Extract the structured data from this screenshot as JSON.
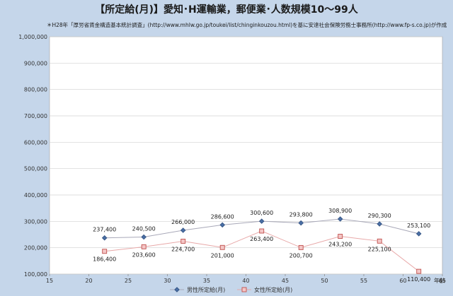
{
  "title": "【所定給(月)】愛知･H運輸業，郵便業･人数規模10～99人",
  "subtitle": "＊H28年「厚労省賃金構造基本統計調査」(http://www.mhlw.go.jp/toukei/list/chinginkouzou.html)を基に安達社会保険労務士事務所(http://www.fp-s.co.jp)が作成",
  "colors": {
    "background": "#c5d6ea",
    "plot_area": "#ffffff",
    "male_series": "#4a6fa5",
    "female_series": "#e8a8a8",
    "female_marker_fill": "#f4c6c6",
    "female_marker_stroke": "#c0504d"
  },
  "chart_data": {
    "type": "scatter",
    "title": "【所定給(月)】愛知･H運輸業，郵便業･人数規模10～99人",
    "xlabel": "年齢",
    "ylabel": "",
    "xlim": [
      15,
      65
    ],
    "ylim": [
      100000,
      1000000
    ],
    "x_ticks": [
      15,
      20,
      25,
      30,
      35,
      40,
      45,
      50,
      55,
      60,
      65
    ],
    "y_ticks": [
      100000,
      200000,
      300000,
      400000,
      500000,
      600000,
      700000,
      800000,
      900000,
      1000000
    ],
    "x_tick_labels": [
      "15",
      "20",
      "25",
      "30",
      "35",
      "40",
      "45",
      "50",
      "55",
      "60",
      "65"
    ],
    "y_tick_labels": [
      "100,000",
      "200,000",
      "300,000",
      "400,000",
      "500,000",
      "600,000",
      "700,000",
      "800,000",
      "900,000",
      "1,000,000"
    ],
    "grid": "horizontal",
    "legend_position": "bottom",
    "series": [
      {
        "name": "男性所定給(月)",
        "marker": "diamond",
        "x": [
          22,
          27,
          32,
          37,
          42,
          47,
          52,
          57,
          62
        ],
        "values": [
          237400,
          240500,
          266000,
          286600,
          300600,
          293800,
          308900,
          290300,
          253100
        ],
        "labels": [
          "237,400",
          "240,500",
          "266,000",
          "286,600",
          "300,600",
          "293,800",
          "308,900",
          "290,300",
          "253,100"
        ]
      },
      {
        "name": "女性所定給(月)",
        "marker": "square",
        "x": [
          22,
          27,
          32,
          37,
          42,
          47,
          52,
          57,
          62
        ],
        "values": [
          186400,
          203600,
          224700,
          201000,
          263400,
          200700,
          243200,
          225100,
          110400
        ],
        "labels": [
          "186,400",
          "203,600",
          "224,700",
          "201,000",
          "263,400",
          "200,700",
          "243,200",
          "225,100",
          "110,400"
        ]
      }
    ]
  }
}
